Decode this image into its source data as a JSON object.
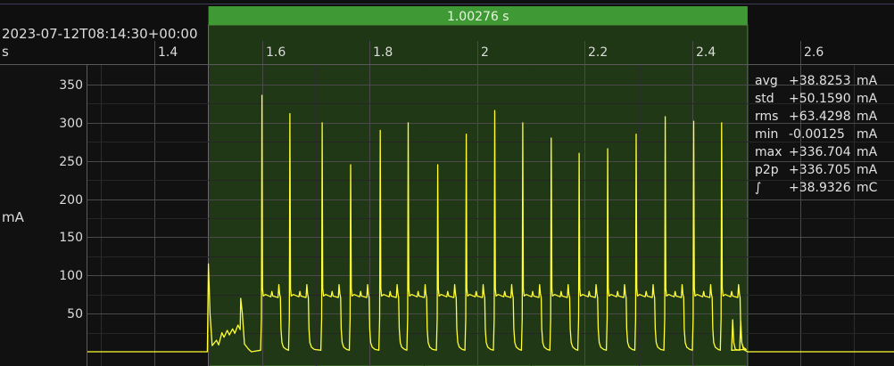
{
  "timestamp": "2023-07-12T08:14:30+00:00",
  "x_unit": "s",
  "y_unit": "mA",
  "selection": {
    "label": "1.00276 s",
    "start": 1.5,
    "end": 2.50276
  },
  "stats": [
    {
      "name": "avg",
      "value": "+38.8253",
      "unit": "mA"
    },
    {
      "name": "std",
      "value": "+50.1590",
      "unit": "mA"
    },
    {
      "name": "rms",
      "value": "+63.4298",
      "unit": "mA"
    },
    {
      "name": "min",
      "value": "-0.00125",
      "unit": "mA"
    },
    {
      "name": "max",
      "value": "+336.704",
      "unit": "mA"
    },
    {
      "name": "p2p",
      "value": "+336.705",
      "unit": "mA"
    },
    {
      "name": "∫",
      "value": "+38.9326",
      "unit": "mC"
    }
  ],
  "colors": {
    "trace": "#ffff33",
    "selection_fill": "#2f5a1c",
    "selection_header": "#3f9a35",
    "grid": "#4a4a4a",
    "background": "#111111"
  },
  "chart_data": {
    "type": "line",
    "title": "",
    "xlabel": "s",
    "ylabel": "mA",
    "xlim": [
      1.275,
      2.775
    ],
    "ylim": [
      -5,
      372
    ],
    "x_ticks": [
      1.4,
      1.6,
      1.8,
      2,
      2.2,
      2.4,
      2.6
    ],
    "x_tick_labels": [
      "1.4",
      "1.6",
      "1.8",
      "2",
      "2.2",
      "2.4",
      "2.6"
    ],
    "y_ticks": [
      50,
      100,
      150,
      200,
      250,
      300,
      350
    ],
    "y_tick_labels": [
      "50",
      "100",
      "150",
      "200",
      "250",
      "300",
      "350"
    ],
    "grid": true,
    "baseline_mA": 0,
    "startup": {
      "x": [
        1.5,
        1.503,
        1.507,
        1.515,
        1.525,
        1.535,
        1.545,
        1.555,
        1.56,
        1.563,
        1.567,
        1.575,
        1.58
      ],
      "y": [
        115,
        50,
        8,
        15,
        25,
        28,
        30,
        35,
        70,
        50,
        10,
        3,
        0
      ]
    },
    "pulses": [
      {
        "x": 1.6,
        "peak": 336,
        "plateau": 73,
        "width": 0.036
      },
      {
        "x": 1.652,
        "peak": 312,
        "plateau": 73,
        "width": 0.036
      },
      {
        "x": 1.712,
        "peak": 300,
        "plateau": 73,
        "width": 0.036
      },
      {
        "x": 1.765,
        "peak": 245,
        "plateau": 73,
        "width": 0.036
      },
      {
        "x": 1.82,
        "peak": 290,
        "plateau": 73,
        "width": 0.036
      },
      {
        "x": 1.872,
        "peak": 300,
        "plateau": 73,
        "width": 0.036
      },
      {
        "x": 1.927,
        "peak": 245,
        "plateau": 73,
        "width": 0.036
      },
      {
        "x": 1.98,
        "peak": 285,
        "plateau": 73,
        "width": 0.036
      },
      {
        "x": 2.033,
        "peak": 316,
        "plateau": 73,
        "width": 0.036
      },
      {
        "x": 2.085,
        "peak": 300,
        "plateau": 73,
        "width": 0.036
      },
      {
        "x": 2.138,
        "peak": 280,
        "plateau": 73,
        "width": 0.036
      },
      {
        "x": 2.19,
        "peak": 260,
        "plateau": 73,
        "width": 0.036
      },
      {
        "x": 2.243,
        "peak": 266,
        "plateau": 73,
        "width": 0.036
      },
      {
        "x": 2.296,
        "peak": 285,
        "plateau": 73,
        "width": 0.036
      },
      {
        "x": 2.35,
        "peak": 308,
        "plateau": 73,
        "width": 0.036
      },
      {
        "x": 2.403,
        "peak": 302,
        "plateau": 73,
        "width": 0.036
      },
      {
        "x": 2.455,
        "peak": 300,
        "plateau": 73,
        "width": 0.036
      }
    ],
    "tail_spikes": [
      {
        "x": 2.475,
        "peak": 42
      },
      {
        "x": 2.49,
        "peak": 40
      }
    ]
  }
}
